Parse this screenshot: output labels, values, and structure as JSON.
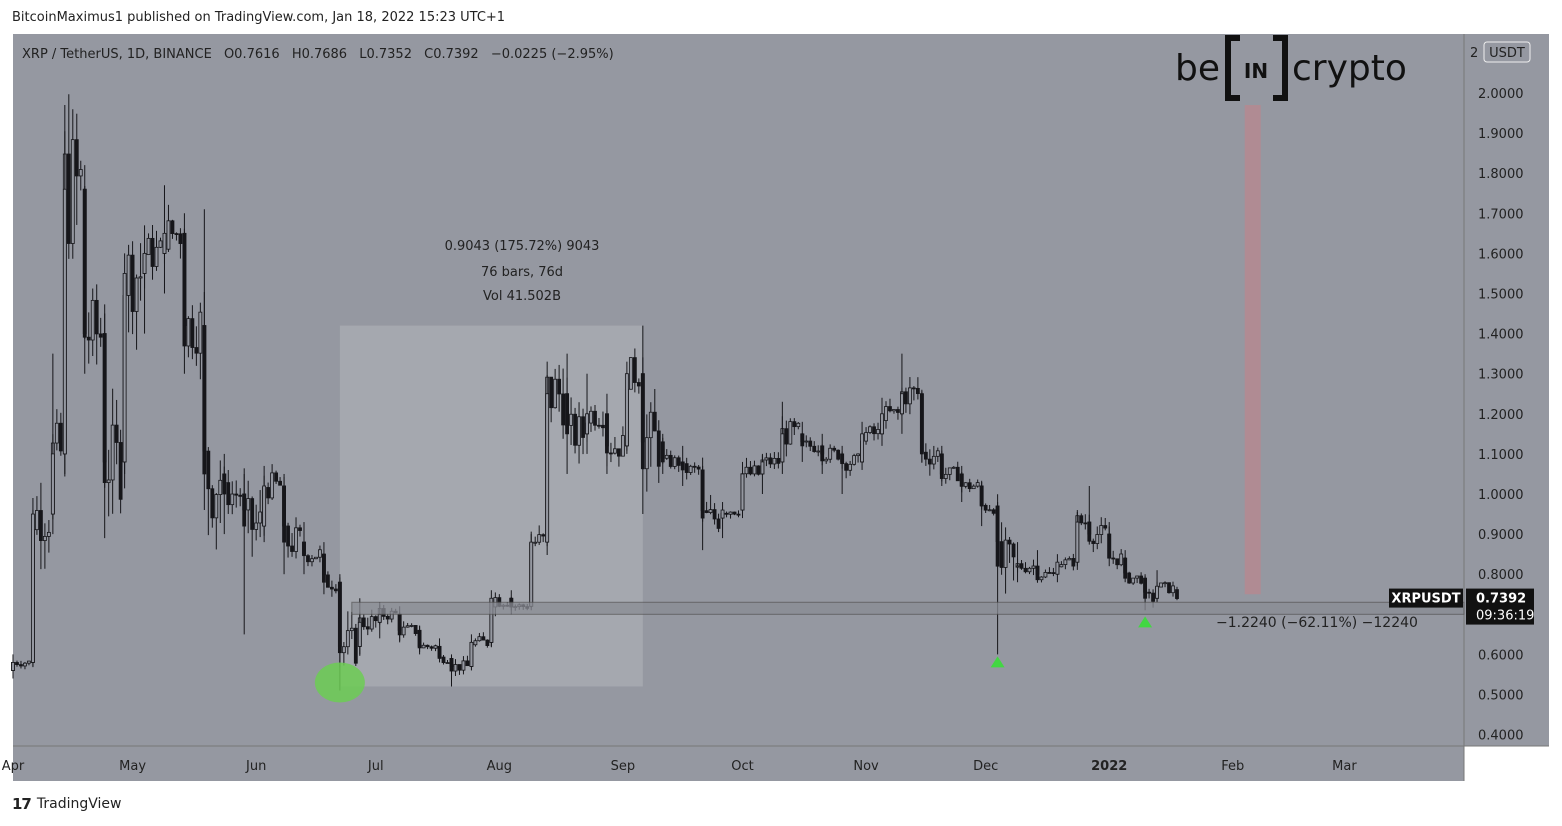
{
  "header": {
    "credit": "BitcoinMaximus1 published on TradingView.com, Jan 18, 2022 15:23 UTC+1"
  },
  "footer": {
    "brand": "TradingView",
    "mark": "17"
  },
  "symbol_bar": {
    "title": "XRP / TetherUS, 1D, BINANCE",
    "o_label": "O",
    "o_value": "0.7616",
    "h_label": "H",
    "h_value": "0.7686",
    "l_label": "L",
    "l_value": "0.7352",
    "c_label": "C",
    "c_value": "0.7392",
    "change": "−0.0225 (−2.95%)"
  },
  "logo": {
    "left": "be",
    "middle": "IN",
    "right": "crypto"
  },
  "currency_badge": "USDT",
  "price_badge": {
    "symbol": "XRPUSDT",
    "price": "0.7392",
    "countdown": "09:36:19"
  },
  "measure_up": {
    "line1": "0.9043 (175.72%) 9043",
    "line2": "76 bars, 76d",
    "line3": "Vol 41.502B"
  },
  "measure_down": {
    "text": "−1.2240 (−62.11%) −12240"
  },
  "colors": {
    "background": "#9598a1",
    "candle": "#16161a",
    "up_marker": "#42d742",
    "circle": "#6ccc53",
    "red_zone": "#b28a91",
    "box": "#a8aab1"
  },
  "chart_data": {
    "type": "candlestick",
    "symbol": "XRP / TetherUS",
    "interval": "1D",
    "x_ticks": [
      "Apr",
      "May",
      "Jun",
      "Jul",
      "Aug",
      "Sep",
      "Oct",
      "Nov",
      "Dec",
      "2022",
      "Feb",
      "Mar"
    ],
    "y_ticks": [
      "0.4000",
      "0.5000",
      "0.6000",
      "0.7000",
      "0.8000",
      "0.9000",
      "1.0000",
      "1.1000",
      "1.2000",
      "1.3000",
      "1.4000",
      "1.5000",
      "1.6000",
      "1.7000",
      "1.8000",
      "1.9000",
      "2.0000"
    ],
    "y_top_label": "2",
    "ylim": [
      0.375,
      2.14
    ],
    "x_range": [
      "2021-04-01",
      "2022-03-31"
    ],
    "ohlc": [
      [
        "2021-04-01",
        0.56,
        0.6,
        0.54,
        0.58
      ],
      [
        "2021-04-06",
        0.58,
        0.99,
        0.57,
        0.95
      ],
      [
        "2021-04-11",
        0.95,
        1.35,
        0.9,
        1.1
      ],
      [
        "2021-04-14",
        1.1,
        1.97,
        1.05,
        1.76
      ],
      [
        "2021-04-19",
        1.76,
        1.82,
        1.3,
        1.4
      ],
      [
        "2021-04-24",
        1.4,
        1.45,
        0.89,
        1.08
      ],
      [
        "2021-04-29",
        1.08,
        1.6,
        1.05,
        1.55
      ],
      [
        "2021-05-04",
        1.55,
        1.67,
        1.4,
        1.6
      ],
      [
        "2021-05-09",
        1.6,
        1.77,
        1.5,
        1.65
      ],
      [
        "2021-05-14",
        1.65,
        1.7,
        1.3,
        1.42
      ],
      [
        "2021-05-19",
        1.42,
        1.71,
        0.96,
        1.05
      ],
      [
        "2021-05-24",
        1.05,
        1.1,
        0.9,
        1.0
      ],
      [
        "2021-05-29",
        1.0,
        1.05,
        0.65,
        0.92
      ],
      [
        "2021-06-03",
        0.92,
        1.07,
        0.88,
        1.02
      ],
      [
        "2021-06-08",
        1.02,
        1.05,
        0.8,
        0.88
      ],
      [
        "2021-06-13",
        0.88,
        0.93,
        0.8,
        0.85
      ],
      [
        "2021-06-18",
        0.85,
        0.88,
        0.75,
        0.78
      ],
      [
        "2021-06-22",
        0.78,
        0.8,
        0.51,
        0.62
      ],
      [
        "2021-06-27",
        0.62,
        0.74,
        0.6,
        0.68
      ],
      [
        "2021-07-02",
        0.68,
        0.73,
        0.64,
        0.7
      ],
      [
        "2021-07-07",
        0.7,
        0.72,
        0.63,
        0.66
      ],
      [
        "2021-07-12",
        0.66,
        0.67,
        0.6,
        0.62
      ],
      [
        "2021-07-17",
        0.62,
        0.64,
        0.58,
        0.59
      ],
      [
        "2021-07-20",
        0.59,
        0.6,
        0.52,
        0.57
      ],
      [
        "2021-07-25",
        0.57,
        0.65,
        0.56,
        0.63
      ],
      [
        "2021-07-30",
        0.63,
        0.76,
        0.62,
        0.74
      ],
      [
        "2021-08-04",
        0.74,
        0.76,
        0.7,
        0.72
      ],
      [
        "2021-08-09",
        0.72,
        0.9,
        0.71,
        0.88
      ],
      [
        "2021-08-13",
        0.88,
        1.33,
        0.87,
        1.25
      ],
      [
        "2021-08-18",
        1.25,
        1.35,
        1.05,
        1.15
      ],
      [
        "2021-08-23",
        1.15,
        1.3,
        1.1,
        1.2
      ],
      [
        "2021-08-28",
        1.2,
        1.25,
        1.05,
        1.12
      ],
      [
        "2021-09-02",
        1.12,
        1.33,
        1.1,
        1.3
      ],
      [
        "2021-09-06",
        1.3,
        1.42,
        0.95,
        1.13
      ],
      [
        "2021-09-11",
        1.13,
        1.15,
        1.05,
        1.08
      ],
      [
        "2021-09-16",
        1.08,
        1.12,
        1.02,
        1.06
      ],
      [
        "2021-09-21",
        1.06,
        1.07,
        0.86,
        0.94
      ],
      [
        "2021-09-26",
        0.94,
        0.98,
        0.89,
        0.96
      ],
      [
        "2021-10-01",
        0.96,
        1.08,
        0.94,
        1.05
      ],
      [
        "2021-10-06",
        1.05,
        1.1,
        1.0,
        1.08
      ],
      [
        "2021-10-11",
        1.08,
        1.23,
        1.05,
        1.15
      ],
      [
        "2021-10-16",
        1.15,
        1.18,
        1.08,
        1.12
      ],
      [
        "2021-10-21",
        1.12,
        1.15,
        1.05,
        1.1
      ],
      [
        "2021-10-26",
        1.1,
        1.12,
        1.0,
        1.08
      ],
      [
        "2021-10-31",
        1.08,
        1.18,
        1.06,
        1.15
      ],
      [
        "2021-11-05",
        1.15,
        1.24,
        1.12,
        1.2
      ],
      [
        "2021-11-10",
        1.2,
        1.35,
        1.15,
        1.25
      ],
      [
        "2021-11-15",
        1.25,
        1.26,
        1.08,
        1.1
      ],
      [
        "2021-11-20",
        1.1,
        1.12,
        1.02,
        1.05
      ],
      [
        "2021-11-25",
        1.05,
        1.07,
        0.98,
        1.02
      ],
      [
        "2021-11-30",
        1.02,
        1.03,
        0.92,
        0.97
      ],
      [
        "2021-12-04",
        0.97,
        0.98,
        0.6,
        0.82
      ],
      [
        "2021-12-09",
        0.82,
        0.88,
        0.78,
        0.82
      ],
      [
        "2021-12-14",
        0.82,
        0.86,
        0.78,
        0.8
      ],
      [
        "2021-12-19",
        0.8,
        0.85,
        0.78,
        0.83
      ],
      [
        "2021-12-24",
        0.83,
        0.96,
        0.82,
        0.93
      ],
      [
        "2021-12-27",
        0.93,
        1.02,
        0.88,
        0.9
      ],
      [
        "2022-01-01",
        0.9,
        0.93,
        0.82,
        0.84
      ],
      [
        "2022-01-05",
        0.84,
        0.86,
        0.78,
        0.79
      ],
      [
        "2022-01-10",
        0.79,
        0.8,
        0.71,
        0.74
      ],
      [
        "2022-01-13",
        0.74,
        0.81,
        0.73,
        0.77
      ],
      [
        "2022-01-18",
        0.7616,
        0.7686,
        0.7352,
        0.7392
      ]
    ],
    "support_zone": {
      "low": 0.7,
      "high": 0.73,
      "from": "2021-06-25",
      "to": "2022-03-31"
    },
    "resistance_zone": {
      "low": 0.75,
      "high": 1.97,
      "from": "2022-02-04",
      "to": "2022-02-08",
      "color": "red"
    },
    "measure_box": {
      "from": "2021-06-22",
      "to": "2021-09-06",
      "low": 0.52,
      "high": 1.42
    },
    "up_markers": [
      {
        "date": "2021-12-04",
        "price": 0.58
      },
      {
        "date": "2022-01-10",
        "price": 0.68
      }
    ],
    "highlight_circle": {
      "date": "2021-06-22",
      "price": 0.53
    }
  }
}
